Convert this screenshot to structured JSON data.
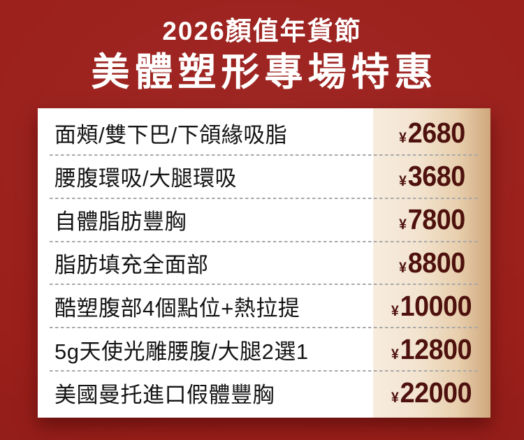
{
  "header": {
    "event_title": "2026顏值年貨節",
    "main_title": "美體塑形專場特惠"
  },
  "price_table": {
    "currency_symbol": "¥",
    "rows": [
      {
        "service": "面頰/雙下巴/下頜緣吸脂",
        "price": "2680"
      },
      {
        "service": "腰腹環吸/大腿環吸",
        "price": "3680"
      },
      {
        "service": "自體脂肪豐胸",
        "price": "7800"
      },
      {
        "service": "脂肪填充全面部",
        "price": "8800"
      },
      {
        "service": "酷塑腹部4個點位+熱拉提",
        "price": "10000"
      },
      {
        "service": "5g天使光雕腰腹/大腿2選1",
        "price": "12800"
      },
      {
        "service": "美國曼托進口假體豐胸",
        "price": "22000"
      }
    ]
  },
  "colors": {
    "background_red": "#9B1F1B",
    "title_text": "#FFFFFF",
    "card_background": "#FFFFFF",
    "service_text": "#141414",
    "price_text": "#4E110D",
    "price_strip_gradient_start": "#F7ECDE",
    "price_strip_gradient_end": "#CFA77C",
    "dashed_divider": "#A8A8A8"
  }
}
